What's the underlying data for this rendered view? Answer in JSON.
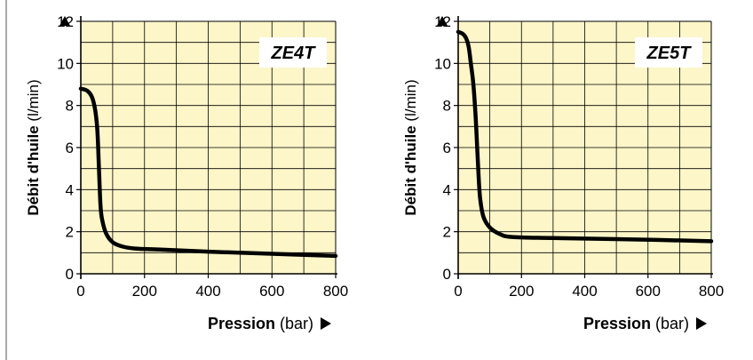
{
  "chart_data": [
    {
      "type": "line",
      "title": "ZE4T",
      "xlabel": "Pression",
      "xlabel_unit": "(bar)",
      "ylabel": "Débit d'huile (l/min)",
      "xlim": [
        0,
        800
      ],
      "ylim": [
        0,
        12
      ],
      "x_ticks": [
        "0",
        "200",
        "400",
        "600",
        "800"
      ],
      "y_ticks": [
        "0",
        "2",
        "4",
        "6",
        "8",
        "10",
        "12"
      ],
      "grid": true,
      "series": [
        {
          "x": [
            0,
            20,
            35,
            45,
            52,
            57,
            62,
            68,
            80,
            100,
            130,
            170,
            250,
            400,
            600,
            800
          ],
          "y": [
            8.8,
            8.7,
            8.4,
            7.8,
            6.8,
            5.0,
            3.2,
            2.5,
            1.9,
            1.5,
            1.3,
            1.2,
            1.15,
            1.05,
            0.95,
            0.85
          ]
        }
      ]
    },
    {
      "type": "line",
      "title": "ZE5T",
      "xlabel": "Pression",
      "xlabel_unit": "(bar)",
      "ylabel": "Débit d'huile (l/min)",
      "xlim": [
        0,
        800
      ],
      "ylim": [
        0,
        12
      ],
      "x_ticks": [
        "0",
        "200",
        "400",
        "600",
        "800"
      ],
      "y_ticks": [
        "0",
        "2",
        "4",
        "6",
        "8",
        "10",
        "12"
      ],
      "grid": true,
      "series": [
        {
          "x": [
            0,
            15,
            25,
            33,
            40,
            48,
            55,
            60,
            65,
            70,
            80,
            100,
            130,
            170,
            300,
            500,
            800
          ],
          "y": [
            11.5,
            11.4,
            11.2,
            10.8,
            10.0,
            9.0,
            7.5,
            6.0,
            4.5,
            3.5,
            2.7,
            2.2,
            1.9,
            1.75,
            1.7,
            1.65,
            1.55
          ]
        }
      ]
    }
  ],
  "colors": {
    "plot_background": "#fcf6c9",
    "grid": "#000000",
    "curve": "#000000"
  }
}
